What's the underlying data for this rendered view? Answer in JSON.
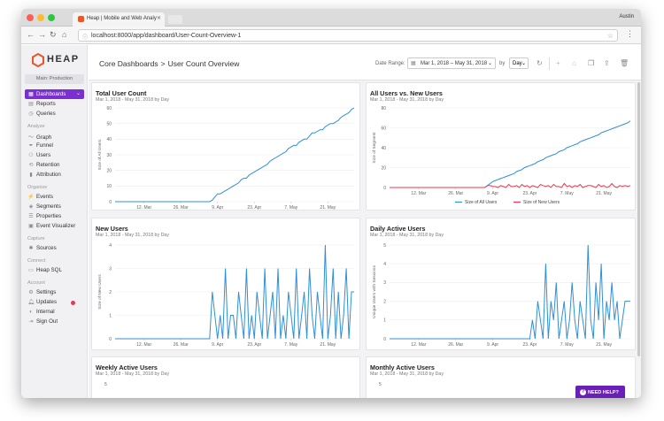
{
  "browser": {
    "tab_title": "Heap | Mobile and Web Analy",
    "user": "Austin",
    "url": "localhost:8000/app/dashboard/User-Count-Overview-1"
  },
  "sidebar": {
    "logo": "HEAP",
    "environment": "Main: Production",
    "sections": [
      {
        "label": ""
      },
      {
        "label": "Analyze"
      },
      {
        "label": "Organize"
      },
      {
        "label": "Capture"
      },
      {
        "label": "Connect"
      },
      {
        "label": "Account"
      }
    ],
    "items": [
      {
        "label": "Dashboards",
        "icon": "dashboard-icon"
      },
      {
        "label": "Reports",
        "icon": "reports-icon"
      },
      {
        "label": "Queries",
        "icon": "queries-icon"
      },
      {
        "label": "Graph",
        "icon": "graph-icon"
      },
      {
        "label": "Funnel",
        "icon": "funnel-icon"
      },
      {
        "label": "Users",
        "icon": "users-icon"
      },
      {
        "label": "Retention",
        "icon": "retention-icon"
      },
      {
        "label": "Attribution",
        "icon": "attribution-icon"
      },
      {
        "label": "Events",
        "icon": "events-icon"
      },
      {
        "label": "Segments",
        "icon": "segments-icon"
      },
      {
        "label": "Properties",
        "icon": "properties-icon"
      },
      {
        "label": "Event Visualizer",
        "icon": "event-visualizer-icon"
      },
      {
        "label": "Sources",
        "icon": "sources-icon"
      },
      {
        "label": "Heap SQL",
        "icon": "sql-icon"
      },
      {
        "label": "Settings",
        "icon": "settings-icon"
      },
      {
        "label": "Updates",
        "icon": "updates-icon"
      },
      {
        "label": "Internal",
        "icon": "internal-icon"
      },
      {
        "label": "Sign Out",
        "icon": "sign-out-icon"
      }
    ]
  },
  "header": {
    "crumb_root": "Core Dashboards",
    "crumb_sep": ">",
    "crumb_current": "User Count Overview",
    "date_range_label": "Date Range:",
    "date_range_value": "Mar 1, 2018 – May 31, 2018",
    "by_label": "by",
    "granularity": "Day"
  },
  "colors": {
    "accent": "#7b2fd0",
    "blue": "#2f8fd8",
    "red": "#e8384f"
  },
  "cards": [
    {
      "title": "Total User Count",
      "subtitle": "Mar 1, 2018 - May 31, 2018 by Day",
      "ylabel": "Size of All Users",
      "yticks": [
        "0",
        "10",
        "20",
        "30",
        "40",
        "50",
        "60"
      ],
      "xticks": [
        "12. Mar",
        "26. Mar",
        "9. Apr",
        "23. Apr",
        "7. May",
        "21. May"
      ]
    },
    {
      "title": "All Users vs. New Users",
      "subtitle": "Mar 1, 2018 - May 31, 2018 by Day",
      "ylabel": "Size of Segment",
      "yticks": [
        "0",
        "20",
        "40",
        "60",
        "80"
      ],
      "xticks": [
        "12. Mar",
        "26. Mar",
        "9. Apr",
        "23. Apr",
        "7. May",
        "21. May"
      ],
      "legend": [
        "Size of All Users",
        "Size of New Users"
      ]
    },
    {
      "title": "New Users",
      "subtitle": "Mar 1, 2018 - May 31, 2018 by Day",
      "ylabel": "Size of New Users",
      "yticks": [
        "0",
        "1",
        "2",
        "3",
        "4"
      ],
      "xticks": [
        "12. Mar",
        "26. Mar",
        "9. Apr",
        "23. Apr",
        "7. May",
        "21. May"
      ]
    },
    {
      "title": "Daily Active Users",
      "subtitle": "Mar 1, 2018 - May 31, 2018 by Day",
      "ylabel": "Unique Users with Sessions",
      "yticks": [
        "0",
        "1",
        "2",
        "3",
        "4",
        "5"
      ],
      "xticks": [
        "12. Mar",
        "26. Mar",
        "9. Apr",
        "23. Apr",
        "7. May",
        "21. May"
      ]
    },
    {
      "title": "Weekly Active Users",
      "subtitle": "Mar 1, 2018 - May 31, 2018 by Day",
      "yticks": [
        "5"
      ]
    },
    {
      "title": "Monthly Active Users",
      "subtitle": "Mar 1, 2018 - May 31, 2018 by Day",
      "yticks": [
        "5"
      ]
    }
  ],
  "help_label": "NEED HELP?",
  "chart_data": [
    {
      "type": "line",
      "title": "Total User Count",
      "ylabel": "Size of All Users",
      "ylim": [
        0,
        60
      ],
      "x_start": "2018-03-01",
      "x_end": "2018-05-31",
      "series": [
        {
          "name": "",
          "values": [
            0,
            0,
            0,
            0,
            0,
            0,
            0,
            0,
            0,
            0,
            0,
            0,
            0,
            0,
            0,
            0,
            0,
            0,
            0,
            0,
            0,
            0,
            0,
            0,
            0,
            0,
            0,
            0,
            0,
            0,
            0,
            0,
            0,
            0,
            0,
            0,
            0,
            1,
            3,
            5,
            5,
            6,
            7,
            8,
            9,
            10,
            11,
            12,
            14,
            15,
            15,
            17,
            18,
            19,
            20,
            21,
            22,
            23,
            24,
            26,
            27,
            28,
            29,
            30,
            31,
            32,
            34,
            35,
            36,
            36,
            38,
            39,
            40,
            40,
            42,
            44,
            44,
            45,
            46,
            46,
            48,
            49,
            50,
            50,
            51,
            52,
            54,
            55,
            56,
            57,
            59,
            60
          ]
        }
      ]
    },
    {
      "type": "line",
      "title": "All Users vs. New Users",
      "ylabel": "Size of Segment",
      "ylim": [
        0,
        80
      ],
      "x_start": "2018-03-01",
      "x_end": "2018-05-31",
      "series": [
        {
          "name": "Size of All Users",
          "values": [
            0,
            0,
            0,
            0,
            0,
            0,
            0,
            0,
            0,
            0,
            0,
            0,
            0,
            0,
            0,
            0,
            0,
            0,
            0,
            0,
            0,
            0,
            0,
            0,
            0,
            0,
            0,
            0,
            0,
            0,
            0,
            0,
            0,
            0,
            0,
            0,
            0,
            2,
            4,
            6,
            7,
            8,
            9,
            10,
            11,
            12,
            13,
            14,
            16,
            17,
            18,
            20,
            21,
            22,
            23,
            24,
            26,
            27,
            28,
            30,
            31,
            32,
            33,
            34,
            36,
            37,
            38,
            40,
            41,
            42,
            43,
            44,
            46,
            47,
            48,
            49,
            50,
            51,
            52,
            53,
            55,
            56,
            57,
            58,
            59,
            60,
            61,
            62,
            63,
            64,
            65,
            67
          ]
        },
        {
          "name": "Size of New Users",
          "values": [
            0,
            0,
            0,
            0,
            0,
            0,
            0,
            0,
            0,
            0,
            0,
            0,
            0,
            0,
            0,
            0,
            0,
            0,
            0,
            0,
            0,
            0,
            0,
            0,
            0,
            0,
            0,
            0,
            0,
            0,
            0,
            0,
            0,
            0,
            0,
            0,
            0,
            2,
            2,
            1,
            1,
            0,
            2,
            1,
            0,
            3,
            1,
            1,
            2,
            0,
            3,
            1,
            2,
            0,
            2,
            1,
            0,
            3,
            2,
            1,
            2,
            0,
            3,
            1,
            1,
            0,
            4,
            1,
            2,
            0,
            2,
            1,
            3,
            0,
            1,
            2,
            2,
            1,
            0,
            3,
            1,
            2,
            0,
            1,
            4,
            1,
            0,
            2,
            1,
            2,
            1,
            2
          ]
        }
      ]
    },
    {
      "type": "line",
      "title": "New Users",
      "ylabel": "Size of New Users",
      "ylim": [
        0,
        4
      ],
      "x_start": "2018-03-01",
      "x_end": "2018-05-31",
      "series": [
        {
          "name": "",
          "values": [
            0,
            0,
            0,
            0,
            0,
            0,
            0,
            0,
            0,
            0,
            0,
            0,
            0,
            0,
            0,
            0,
            0,
            0,
            0,
            0,
            0,
            0,
            0,
            0,
            0,
            0,
            0,
            0,
            0,
            0,
            0,
            0,
            0,
            0,
            0,
            0,
            0,
            2,
            1,
            0,
            1,
            0,
            3,
            0,
            1,
            1,
            0,
            2,
            1,
            0,
            3,
            0,
            1,
            0,
            2,
            1,
            0,
            3,
            0,
            1,
            2,
            0,
            3,
            0,
            1,
            0,
            2,
            1,
            0,
            3,
            0,
            1,
            2,
            0,
            3,
            1,
            0,
            2,
            1,
            0,
            4,
            0,
            1,
            3,
            0,
            2,
            0,
            1,
            3,
            0,
            2,
            2
          ]
        }
      ]
    },
    {
      "type": "line",
      "title": "Daily Active Users",
      "ylabel": "Unique Users with Sessions",
      "ylim": [
        0,
        5
      ],
      "x_start": "2018-03-01",
      "x_end": "2018-05-31",
      "series": [
        {
          "name": "",
          "values": [
            0,
            0,
            0,
            0,
            0,
            0,
            0,
            0,
            0,
            0,
            0,
            0,
            0,
            0,
            0,
            0,
            0,
            0,
            0,
            0,
            0,
            0,
            0,
            0,
            0,
            0,
            0,
            0,
            0,
            0,
            0,
            0,
            0,
            0,
            0,
            0,
            0,
            0,
            0,
            0,
            0,
            0,
            0,
            0,
            0,
            0,
            0,
            0,
            0,
            0,
            0,
            0,
            0,
            0,
            1,
            0,
            2,
            1,
            0,
            4,
            0,
            2,
            1,
            3,
            0,
            1,
            2,
            0,
            1,
            3,
            1,
            0,
            2,
            1,
            0,
            5,
            1,
            0,
            3,
            1,
            4,
            0,
            2,
            1,
            3,
            1,
            2,
            0,
            1,
            2,
            2,
            2
          ]
        }
      ]
    }
  ]
}
